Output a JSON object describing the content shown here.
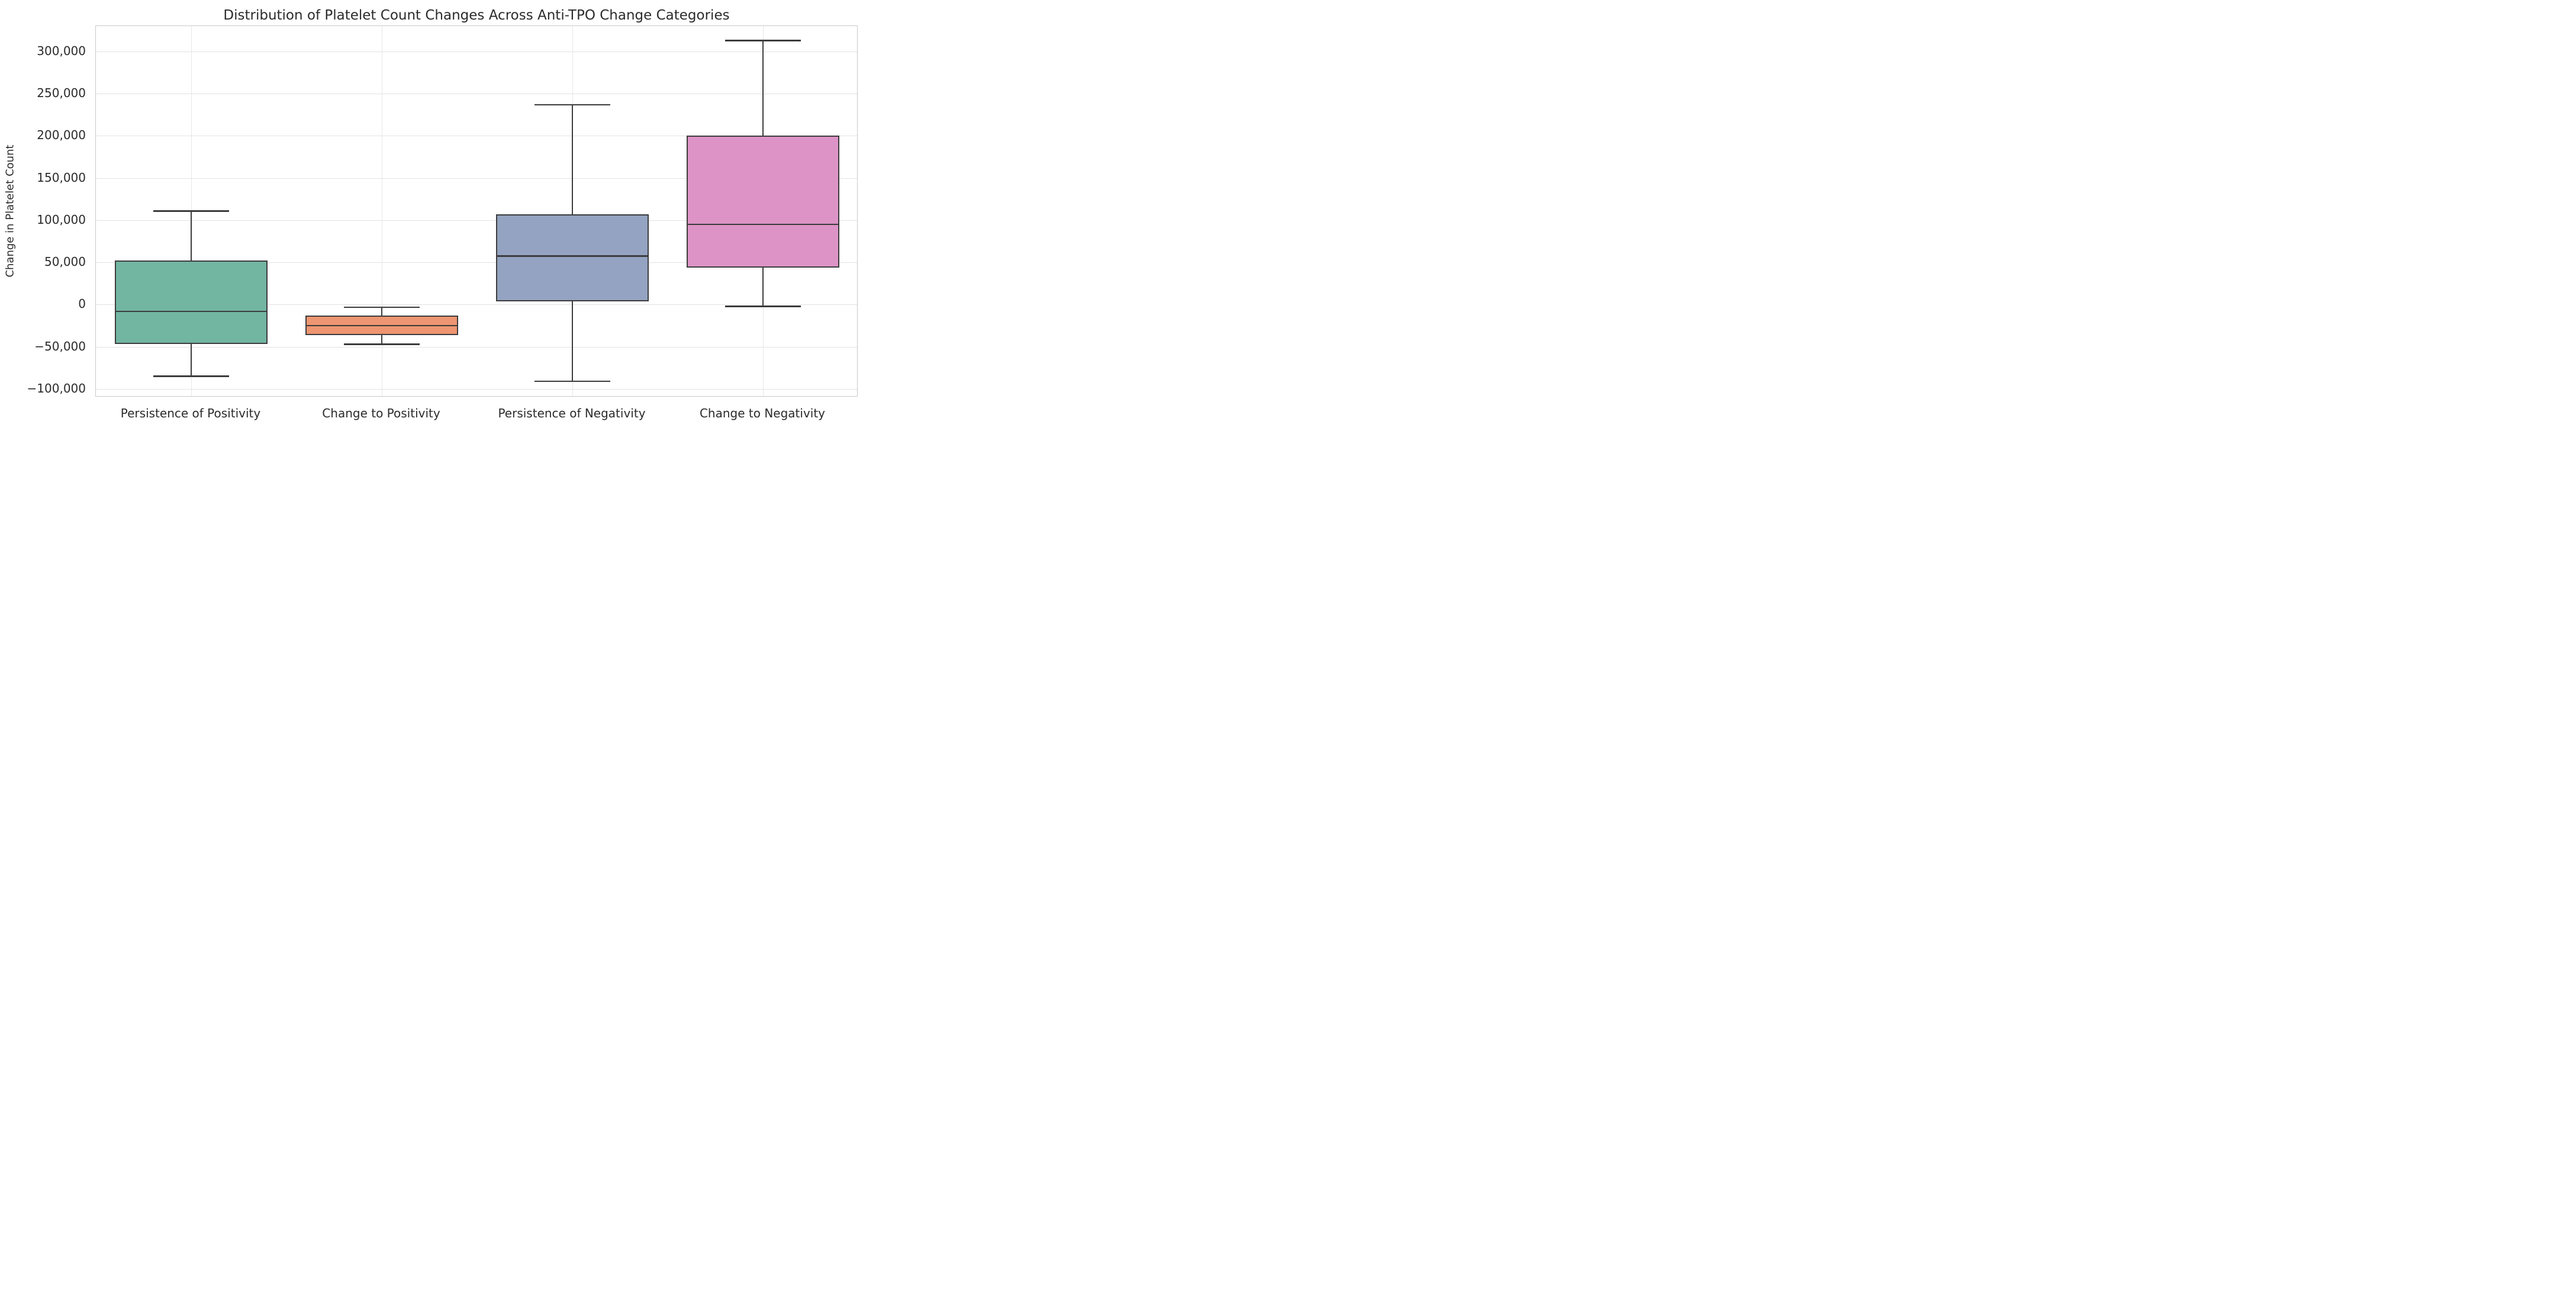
{
  "title": "Distribution of Platelet Count Changes Across Anti-TPO Change Categories",
  "y_axis": {
    "label": "Change in Platelet Count",
    "ticks": [
      {
        "value": 300000,
        "label": "300,000"
      },
      {
        "value": 250000,
        "label": "250,000"
      },
      {
        "value": 200000,
        "label": "200,000"
      },
      {
        "value": 150000,
        "label": "150,000"
      },
      {
        "value": 100000,
        "label": "100,000"
      },
      {
        "value": 50000,
        "label": "50,000"
      },
      {
        "value": 0,
        "label": "0"
      },
      {
        "value": -50000,
        "label": "−50,000"
      },
      {
        "value": -100000,
        "label": "−100,000"
      }
    ]
  },
  "chart_data": {
    "type": "boxplot",
    "title": "Distribution of Platelet Count Changes Across Anti-TPO Change Categories",
    "xlabel": "",
    "ylabel": "Change in Platelet Count",
    "ylim": [
      -110000,
      330000
    ],
    "grid": true,
    "legend": "none",
    "categories": [
      "Persistence of Positivity",
      "Change to Positivity",
      "Persistence of Negativity",
      "Change to Negativity"
    ],
    "series": [
      {
        "name": "Persistence of Positivity",
        "color": "#72b5a1",
        "whisker_low": -85000,
        "q1": -47000,
        "median": -8000,
        "q3": 52000,
        "whisker_high": 111000
      },
      {
        "name": "Change to Positivity",
        "color": "#ee9571",
        "whisker_low": -47000,
        "q1": -36000,
        "median": -25000,
        "q3": -13000,
        "whisker_high": -3000
      },
      {
        "name": "Persistence of Negativity",
        "color": "#93a3c1",
        "whisker_low": -91000,
        "q1": 4000,
        "median": 57500,
        "q3": 107000,
        "whisker_high": 237000
      },
      {
        "name": "Change to Negativity",
        "color": "#dd93c6",
        "whisker_low": -2000,
        "q1": 44000,
        "median": 95000,
        "q3": 200000,
        "whisker_high": 313000
      }
    ]
  },
  "style_colors": {
    "line": "#3c3c3c",
    "gridline": "#e2e2e2",
    "plot_border": "#c9c9c9",
    "background": "#ffffff"
  }
}
